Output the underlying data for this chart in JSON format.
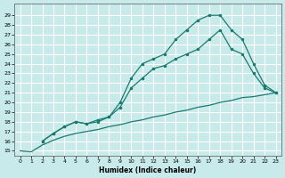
{
  "xlabel": "Humidex (Indice chaleur)",
  "bg_color": "#c8eaea",
  "grid_color": "#b0d8d8",
  "line_color": "#1a7a6e",
  "ylim": [
    14.5,
    30.2
  ],
  "xlim": [
    -0.5,
    23.5
  ],
  "yticks": [
    15,
    16,
    17,
    18,
    19,
    20,
    21,
    22,
    23,
    24,
    25,
    26,
    27,
    28,
    29
  ],
  "xticks": [
    0,
    1,
    2,
    3,
    4,
    5,
    6,
    7,
    8,
    9,
    10,
    11,
    12,
    13,
    14,
    15,
    16,
    17,
    18,
    19,
    20,
    21,
    22,
    23
  ],
  "curve1_x": [
    0,
    1,
    2,
    3,
    4,
    5,
    6,
    7,
    8,
    9,
    10,
    11,
    12,
    13,
    14,
    15,
    16,
    17,
    18,
    19,
    20,
    21,
    22,
    23
  ],
  "curve1_y": [
    15.0,
    14.9,
    15.6,
    16.1,
    16.5,
    16.8,
    17.0,
    17.2,
    17.5,
    17.7,
    18.0,
    18.2,
    18.5,
    18.7,
    19.0,
    19.2,
    19.5,
    19.7,
    20.0,
    20.2,
    20.5,
    20.6,
    20.8,
    21.0
  ],
  "curve2_x": [
    2,
    3,
    4,
    5,
    6,
    7,
    8,
    9,
    10,
    11,
    12,
    13,
    14,
    15,
    16,
    17,
    18,
    19,
    20,
    21,
    22,
    23
  ],
  "curve2_y": [
    16.0,
    16.8,
    17.5,
    18.0,
    17.8,
    18.0,
    18.5,
    19.5,
    21.5,
    22.5,
    23.5,
    23.8,
    24.5,
    25.0,
    25.5,
    26.5,
    27.5,
    25.5,
    25.0,
    23.0,
    21.5,
    21.0
  ],
  "curve3_x": [
    2,
    3,
    4,
    5,
    6,
    7,
    8,
    9,
    10,
    11,
    12,
    13,
    14,
    15,
    16,
    17,
    18,
    19,
    20,
    21,
    22,
    23
  ],
  "curve3_y": [
    16.0,
    16.8,
    17.5,
    18.0,
    17.8,
    18.2,
    18.5,
    20.0,
    22.5,
    24.0,
    24.5,
    25.0,
    26.5,
    27.5,
    28.5,
    29.0,
    29.0,
    27.5,
    26.5,
    24.0,
    21.8,
    21.0
  ]
}
